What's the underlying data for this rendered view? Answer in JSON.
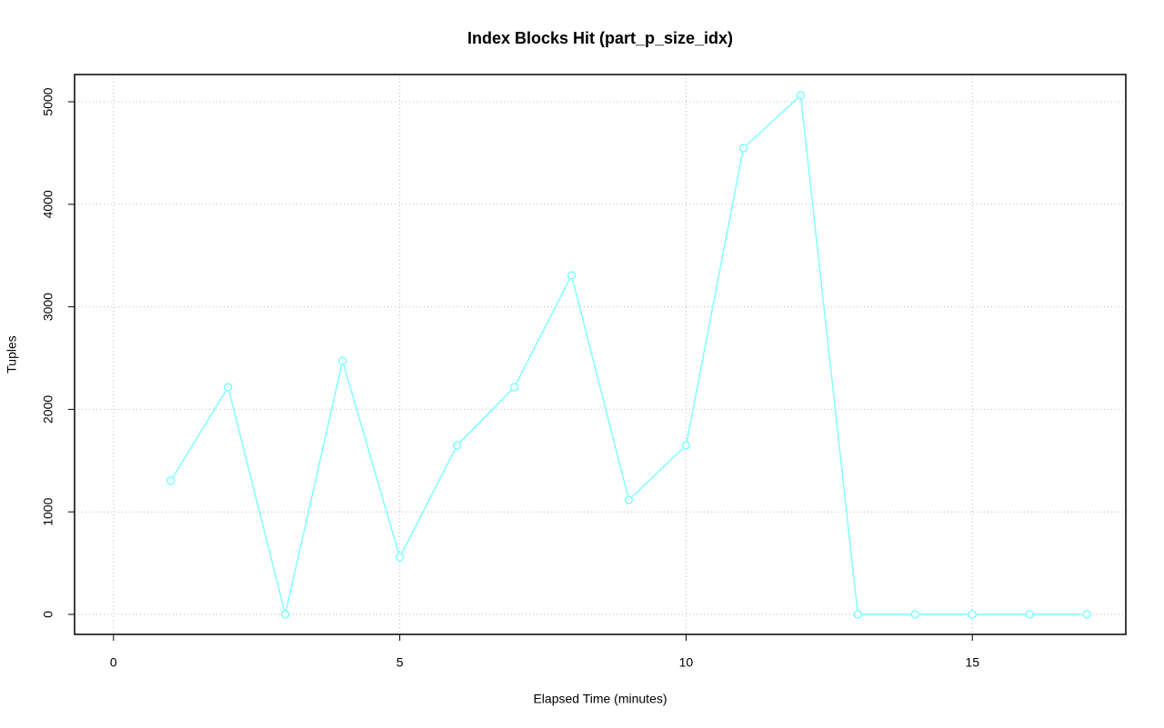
{
  "chart_data": {
    "type": "line",
    "title": "Index Blocks Hit (part_p_size_idx)",
    "x_label": "Elapsed Time (minutes)",
    "y_label": "Tuples",
    "x": [
      1,
      2,
      3,
      4,
      5,
      6,
      7,
      8,
      9,
      10,
      11,
      12,
      13,
      14,
      15,
      16,
      17
    ],
    "series": [
      {
        "color": "#80ffff",
        "values": [
          1303,
          2216,
          0,
          2473,
          558,
          1649,
          2216,
          3307,
          1117,
          1649,
          4548,
          5062,
          0,
          0,
          0,
          0,
          0
        ]
      }
    ],
    "xlim": [
      -0.68,
      17.68
    ],
    "xticks": [
      0,
      5,
      10,
      15
    ],
    "ylim": [
      -195,
      5266
    ],
    "yticks": [
      0,
      1000,
      2000,
      3000,
      4000,
      5000
    ],
    "grid": true
  }
}
